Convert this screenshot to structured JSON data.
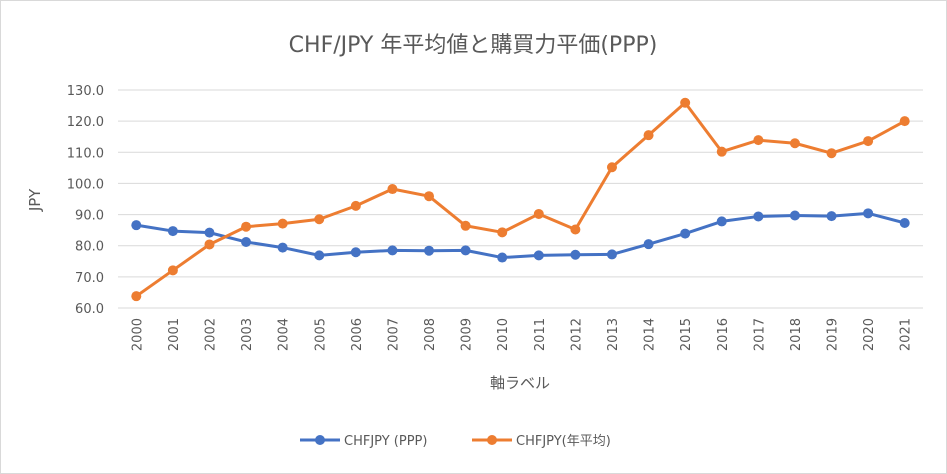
{
  "chart_data": {
    "type": "line",
    "title": "CHF/JPY 年平均値と購買力平価(PPP)",
    "xlabel": "軸ラベル",
    "ylabel": "JPY",
    "ylim": [
      60,
      130
    ],
    "y_ticks": [
      "60.0",
      "70.0",
      "80.0",
      "90.0",
      "100.0",
      "110.0",
      "120.0",
      "130.0"
    ],
    "grid": true,
    "legend_position": "bottom",
    "categories": [
      "2000",
      "2001",
      "2002",
      "2003",
      "2004",
      "2005",
      "2006",
      "2007",
      "2008",
      "2009",
      "2010",
      "2011",
      "2012",
      "2013",
      "2014",
      "2015",
      "2016",
      "2017",
      "2018",
      "2019",
      "2020",
      "2021"
    ],
    "series": [
      {
        "name": "CHFJPY (PPP)",
        "color": "#4472c4",
        "values": [
          86.6,
          84.7,
          84.2,
          81.2,
          79.4,
          76.9,
          77.9,
          78.5,
          78.4,
          78.5,
          76.2,
          76.9,
          77.1,
          77.2,
          80.5,
          83.9,
          87.8,
          89.4,
          89.7,
          89.5,
          90.4,
          87.3
        ]
      },
      {
        "name": "CHFJPY(年平均)",
        "color": "#ed7d31",
        "values": [
          63.8,
          72.1,
          80.4,
          86.1,
          87.1,
          88.5,
          92.8,
          98.2,
          95.9,
          86.4,
          84.3,
          90.2,
          85.2,
          105.2,
          115.5,
          125.9,
          110.2,
          113.9,
          112.9,
          109.7,
          113.6,
          120.0
        ]
      }
    ]
  }
}
